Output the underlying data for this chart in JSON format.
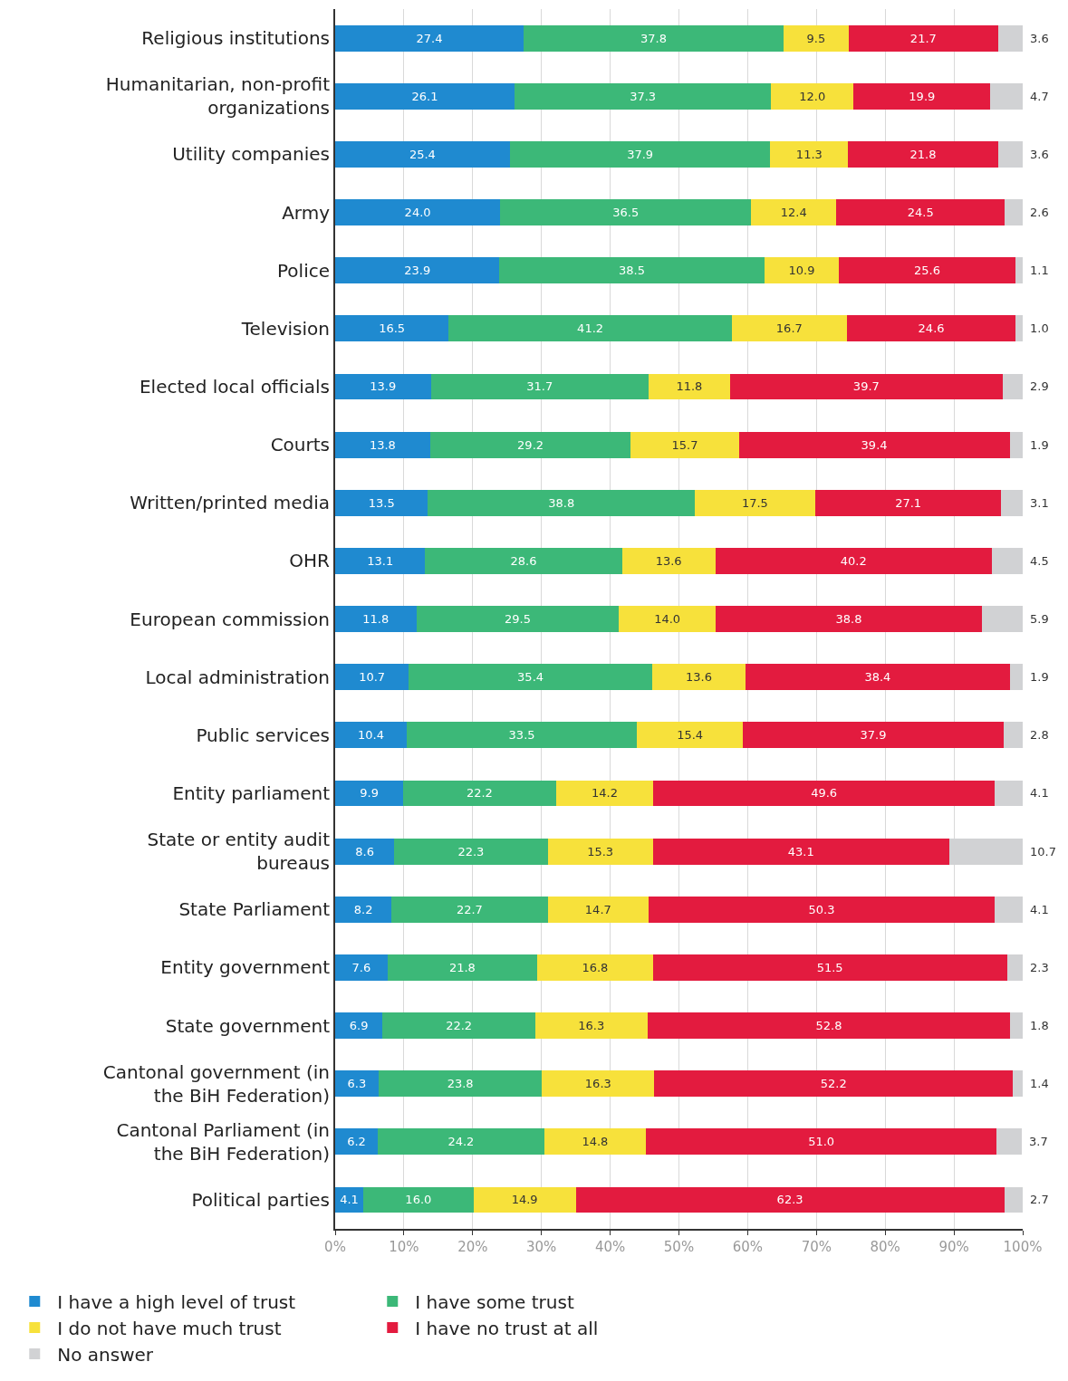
{
  "chart_data": {
    "type": "bar",
    "orientation": "horizontal",
    "stacked": true,
    "grid": "x",
    "legend": "bottom",
    "categories": [
      "Religious institutions",
      "Humanitarian, non-profit organizations",
      "Utility companies",
      "Army",
      "Police",
      "Television",
      "Elected local officials",
      "Courts",
      "Written/printed media",
      "OHR",
      "European commission",
      "Local administration",
      "Public services",
      "Entity parliament",
      "State or entity audit bureaus",
      "State Parliament",
      "Entity government",
      "State government",
      "Cantonal government (in the BiH Federation)",
      "Cantonal Parliament (in the BiH Federation)",
      "Political parties"
    ],
    "xlim": [
      0,
      100
    ],
    "xticks": [
      {
        "value": 0,
        "label": "0%"
      },
      {
        "value": 10,
        "label": "10%"
      },
      {
        "value": 20,
        "label": "20%"
      },
      {
        "value": 30,
        "label": "30%"
      },
      {
        "value": 40,
        "label": "40%"
      },
      {
        "value": 50,
        "label": "50%"
      },
      {
        "value": 60,
        "label": "60%"
      },
      {
        "value": 70,
        "label": "70%"
      },
      {
        "value": 80,
        "label": "80%"
      },
      {
        "value": 90,
        "label": "90%"
      },
      {
        "value": 100,
        "label": "100%"
      }
    ],
    "series": [
      {
        "name": "I have a high level of trust",
        "color": "#1f8ad0",
        "values": [
          27.4,
          26.1,
          25.4,
          24.0,
          23.9,
          16.5,
          13.9,
          13.8,
          13.5,
          13.1,
          11.8,
          10.7,
          10.4,
          9.9,
          8.6,
          8.2,
          7.6,
          6.9,
          6.3,
          6.2,
          4.1
        ],
        "value_labels": [
          "27.4",
          "26.1",
          "25.4",
          "24.0",
          "23.9",
          "16.5",
          "13.9",
          "13.8",
          "13.5",
          "13.1",
          "11.8",
          "10.7",
          "10.4",
          "9.9",
          "8.6",
          "8.2",
          "7.6",
          "6.9",
          "6.3",
          "6.2",
          "4.1"
        ]
      },
      {
        "name": "I have some trust",
        "color": "#3cb878",
        "values": [
          37.8,
          37.3,
          37.9,
          36.5,
          38.5,
          41.2,
          31.7,
          29.2,
          38.8,
          28.6,
          29.5,
          35.4,
          33.5,
          22.2,
          22.3,
          22.7,
          21.8,
          22.2,
          23.8,
          24.2,
          16.0
        ],
        "value_labels": [
          "37.8",
          "37.3",
          "37.9",
          "36.5",
          "38.5",
          "41.2",
          "31.7",
          "29.2",
          "38.8",
          "28.6",
          "29.5",
          "35.4",
          "33.5",
          "22.2",
          "22.3",
          "22.7",
          "21.8",
          "22.2",
          "23.8",
          "24.2",
          "16.0"
        ]
      },
      {
        "name": "I do not have much trust",
        "color": "#f7e13b",
        "values": [
          9.5,
          12.0,
          11.3,
          12.4,
          10.9,
          16.7,
          11.8,
          15.7,
          17.5,
          13.6,
          14.0,
          13.6,
          15.4,
          14.2,
          15.3,
          14.7,
          16.8,
          16.3,
          16.3,
          14.8,
          14.9
        ],
        "value_labels": [
          "9.5",
          "12.0",
          "11.3",
          "12.4",
          "10.9",
          "16.7",
          "11.8",
          "15.7",
          "17.5",
          "13.6",
          "14.0",
          "13.6",
          "15.4",
          "14.2",
          "15.3",
          "14.7",
          "16.8",
          "16.3",
          "16.3",
          "14.8",
          "14.9"
        ]
      },
      {
        "name": "I have no trust at all",
        "color": "#e31b3f",
        "values": [
          21.7,
          19.9,
          21.8,
          24.5,
          25.6,
          24.6,
          39.7,
          39.4,
          27.1,
          40.2,
          38.8,
          38.4,
          37.9,
          49.6,
          43.1,
          50.3,
          51.5,
          52.8,
          52.2,
          51.0,
          62.3
        ],
        "value_labels": [
          "21.7",
          "19.9",
          "21.8",
          "24.5",
          "25.6",
          "24.6",
          "39.7",
          "39.4",
          "27.1",
          "40.2",
          "38.8",
          "38.4",
          "37.9",
          "49.6",
          "43.1",
          "50.3",
          "51.5",
          "52.8",
          "52.2",
          "51.0",
          "62.3"
        ]
      },
      {
        "name": "No answer",
        "color": "#d1d2d4",
        "values": [
          3.6,
          4.7,
          3.6,
          2.6,
          1.1,
          1.0,
          2.9,
          1.9,
          3.1,
          4.5,
          5.9,
          1.9,
          2.8,
          4.1,
          10.7,
          4.1,
          2.3,
          1.8,
          1.4,
          3.7,
          2.7
        ],
        "value_labels": [
          "3.6",
          "4.7",
          "3.6",
          "2.6",
          "1.1",
          "1.0",
          "2.9",
          "1.9",
          "3.1",
          "4.5",
          "5.9",
          "1.9",
          "2.8",
          "4.1",
          "10.7",
          "4.1",
          "2.3",
          "1.8",
          "1.4",
          "3.7",
          "2.7"
        ]
      }
    ]
  }
}
